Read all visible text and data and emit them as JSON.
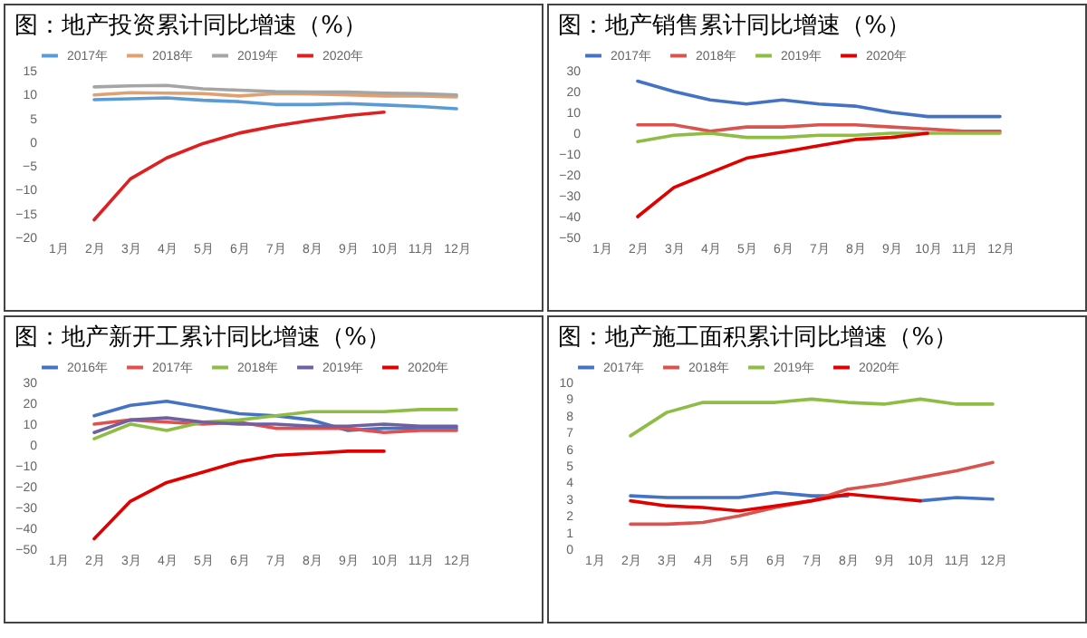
{
  "chart_data": [
    {
      "type": "line",
      "title": "图：地产投资累计同比增速（%）",
      "categories": [
        "1月",
        "2月",
        "3月",
        "4月",
        "5月",
        "6月",
        "7月",
        "8月",
        "9月",
        "10月",
        "11月",
        "12月"
      ],
      "ylim": [
        -20,
        15
      ],
      "yticks": [
        -20,
        -15,
        -10,
        -5,
        0,
        5,
        10,
        15
      ],
      "legend": "top",
      "series": [
        {
          "name": "2017年",
          "color": "#5b9bd5",
          "values": [
            null,
            8.9,
            9.1,
            9.3,
            8.8,
            8.5,
            7.9,
            7.9,
            8.1,
            7.8,
            7.5,
            7.0
          ]
        },
        {
          "name": "2018年",
          "color": "#e0a070",
          "values": [
            null,
            9.9,
            10.4,
            10.3,
            10.2,
            9.7,
            10.2,
            10.1,
            9.9,
            9.7,
            9.7,
            9.5
          ]
        },
        {
          "name": "2019年",
          "color": "#a5a5a5",
          "values": [
            null,
            11.6,
            11.8,
            11.9,
            11.2,
            10.9,
            10.6,
            10.5,
            10.5,
            10.3,
            10.2,
            9.9
          ]
        },
        {
          "name": "2020年",
          "color": "#e02020",
          "values": [
            null,
            -16.3,
            -7.7,
            -3.3,
            -0.3,
            1.9,
            3.4,
            4.6,
            5.6,
            6.3,
            null,
            null
          ]
        }
      ]
    },
    {
      "type": "line",
      "title": "图：地产销售累计同比增速（%）",
      "categories": [
        "1月",
        "2月",
        "3月",
        "4月",
        "5月",
        "6月",
        "7月",
        "8月",
        "9月",
        "10月",
        "11月",
        "12月"
      ],
      "ylim": [
        -50,
        30
      ],
      "yticks": [
        -50,
        -40,
        -30,
        -20,
        -10,
        0,
        10,
        20,
        30
      ],
      "legend": "top",
      "series": [
        {
          "name": "2017年",
          "color": "#4472c4",
          "values": [
            null,
            25,
            20,
            16,
            14,
            16,
            14,
            13,
            10,
            8,
            8,
            8
          ]
        },
        {
          "name": "2018年",
          "color": "#d9534f",
          "values": [
            null,
            4,
            4,
            1,
            3,
            3,
            4,
            4,
            3,
            2,
            1,
            1
          ]
        },
        {
          "name": "2019年",
          "color": "#8fbc45",
          "values": [
            null,
            -4,
            -1,
            0,
            -2,
            -2,
            -1,
            -1,
            0,
            0,
            0,
            0
          ]
        },
        {
          "name": "2020年",
          "color": "#e00000",
          "values": [
            null,
            -40,
            -26,
            -19,
            -12,
            -9,
            -6,
            -3,
            -2,
            0,
            null,
            null
          ]
        }
      ]
    },
    {
      "type": "line",
      "title": "图：地产新开工累计同比增速（%）",
      "categories": [
        "1月",
        "2月",
        "3月",
        "4月",
        "5月",
        "6月",
        "7月",
        "8月",
        "9月",
        "10月",
        "11月",
        "12月"
      ],
      "ylim": [
        -50,
        30
      ],
      "yticks": [
        -50,
        -40,
        -30,
        -20,
        -10,
        0,
        10,
        20,
        30
      ],
      "legend": "top",
      "series": [
        {
          "name": "2016年",
          "color": "#4472c4",
          "values": [
            null,
            14,
            19,
            21,
            18,
            15,
            14,
            12,
            7,
            8,
            8,
            8
          ]
        },
        {
          "name": "2017年",
          "color": "#e05050",
          "values": [
            null,
            10,
            12,
            11,
            10,
            11,
            8,
            8,
            8,
            6,
            7,
            7
          ]
        },
        {
          "name": "2018年",
          "color": "#8fbc45",
          "values": [
            null,
            3,
            10,
            7,
            11,
            12,
            14,
            16,
            16,
            16,
            17,
            17
          ]
        },
        {
          "name": "2019年",
          "color": "#7060a0",
          "values": [
            null,
            6,
            12,
            13,
            11,
            10,
            10,
            9,
            9,
            10,
            9,
            9
          ]
        },
        {
          "name": "2020年",
          "color": "#e00000",
          "values": [
            null,
            -45,
            -27,
            -18,
            -13,
            -8,
            -5,
            -4,
            -3,
            -3,
            null,
            null
          ]
        }
      ]
    },
    {
      "type": "line",
      "title": "图：地产施工面积累计同比增速（%）",
      "categories": [
        "1月",
        "2月",
        "3月",
        "4月",
        "5月",
        "6月",
        "7月",
        "8月",
        "9月",
        "10月",
        "11月",
        "12月"
      ],
      "ylim": [
        0,
        10
      ],
      "yticks": [
        0,
        1,
        2,
        3,
        4,
        5,
        6,
        7,
        8,
        9,
        10
      ],
      "legend": "top",
      "series": [
        {
          "name": "2017年",
          "color": "#4472c4",
          "values": [
            null,
            3.2,
            3.1,
            3.1,
            3.1,
            3.4,
            3.2,
            3.2,
            null,
            2.9,
            3.1,
            3.0
          ]
        },
        {
          "name": "2018年",
          "color": "#d9534f",
          "values": [
            null,
            1.5,
            1.5,
            1.6,
            2.0,
            2.5,
            2.9,
            3.6,
            3.9,
            4.3,
            4.7,
            5.2
          ]
        },
        {
          "name": "2019年",
          "color": "#8fbc45",
          "values": [
            null,
            6.8,
            8.2,
            8.8,
            8.8,
            8.8,
            9.0,
            8.8,
            8.7,
            9.0,
            8.7,
            8.7
          ]
        },
        {
          "name": "2020年",
          "color": "#e00000",
          "values": [
            null,
            2.9,
            2.6,
            2.5,
            2.3,
            2.6,
            2.9,
            3.3,
            3.1,
            2.9,
            null,
            null
          ]
        }
      ]
    }
  ]
}
